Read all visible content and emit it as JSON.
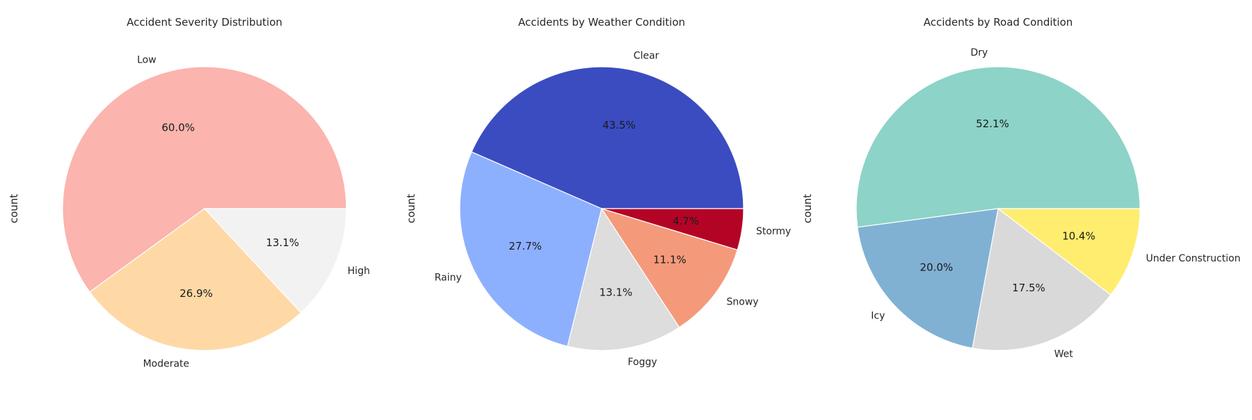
{
  "chart_data": [
    {
      "type": "pie",
      "title": "Accident Severity Distribution",
      "ylabel": "count",
      "categories": [
        "Low",
        "Moderate",
        "High"
      ],
      "values": [
        60.0,
        26.9,
        13.1
      ],
      "pct_labels": [
        "60.0%",
        "26.9%",
        "13.1%"
      ],
      "colors": [
        "#fbb4ae",
        "#fed9a6",
        "#f2f2f2"
      ]
    },
    {
      "type": "pie",
      "title": "Accidents by Weather Condition",
      "ylabel": "count",
      "categories": [
        "Clear",
        "Rainy",
        "Foggy",
        "Snowy",
        "Stormy"
      ],
      "values": [
        43.5,
        27.7,
        13.1,
        11.1,
        4.7
      ],
      "pct_labels": [
        "43.5%",
        "27.7%",
        "13.1%",
        "11.1%",
        "4.7%"
      ],
      "colors": [
        "#3b4cc0",
        "#8db0fe",
        "#dddddd",
        "#f49a7b",
        "#b40426"
      ]
    },
    {
      "type": "pie",
      "title": "Accidents by Road Condition",
      "ylabel": "count",
      "categories": [
        "Dry",
        "Icy",
        "Wet",
        "Under Construction"
      ],
      "values": [
        52.1,
        20.0,
        17.5,
        10.4
      ],
      "pct_labels": [
        "52.1%",
        "20.0%",
        "17.5%",
        "10.4%"
      ],
      "colors": [
        "#8dd3c7",
        "#80b1d3",
        "#d9d9d9",
        "#ffed6f"
      ]
    }
  ]
}
